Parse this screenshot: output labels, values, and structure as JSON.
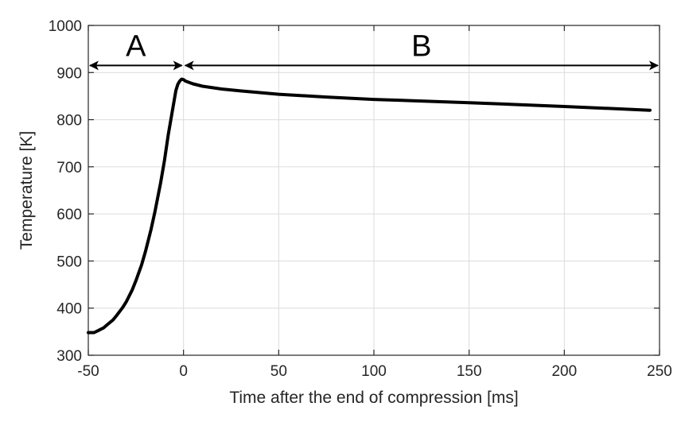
{
  "chart_data": {
    "type": "line",
    "xlabel": "Time after the end of compression [ms]",
    "ylabel": "Temperature [K]",
    "xlim": [
      -50,
      250
    ],
    "ylim": [
      300,
      1000
    ],
    "xticks": [
      -50,
      0,
      50,
      100,
      150,
      200,
      250
    ],
    "yticks": [
      300,
      400,
      500,
      600,
      700,
      800,
      900,
      1000
    ],
    "grid": true,
    "colors": {
      "line": "#000000",
      "grid": "#dcdcdc",
      "axes": "#262626"
    },
    "series": [
      {
        "x": [
          -50,
          -47,
          -45,
          -42,
          -40,
          -37,
          -35,
          -32,
          -30,
          -27,
          -25,
          -22,
          -20,
          -17,
          -15,
          -12,
          -10,
          -8,
          -6,
          -4,
          -3,
          -2,
          -1,
          0,
          1,
          3,
          5,
          10,
          20,
          30,
          50,
          75,
          100,
          150,
          200,
          245
        ],
        "y": [
          348,
          348,
          352,
          358,
          365,
          375,
          385,
          401,
          414,
          438,
          458,
          492,
          520,
          568,
          605,
          666,
          713,
          768,
          815,
          862,
          875,
          882,
          886,
          885,
          882,
          879,
          876,
          871,
          865,
          861,
          854,
          848,
          843,
          836,
          828,
          820
        ]
      }
    ],
    "annotations": [
      {
        "text": "A",
        "x_start": -50,
        "x_end": 0,
        "y": 915
      },
      {
        "text": "B",
        "x_start": 0,
        "x_end": 250,
        "y": 915
      }
    ]
  }
}
